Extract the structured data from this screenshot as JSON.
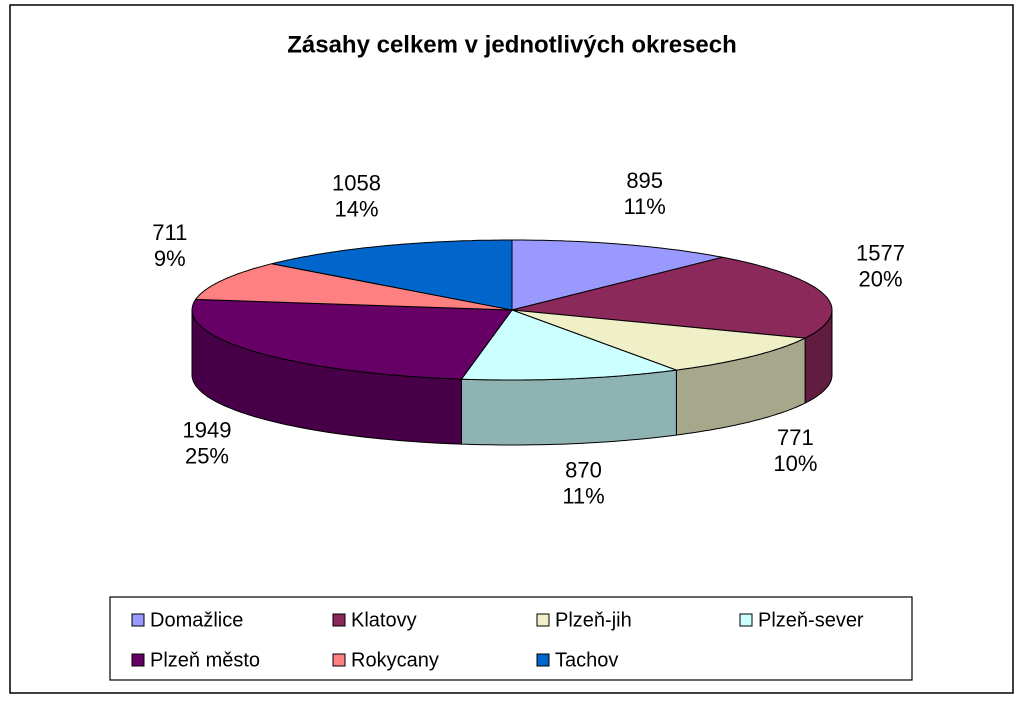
{
  "chart_data": {
    "type": "pie3d",
    "title": "Zásahy celkem v jednotlivých okresech",
    "categories": [
      "Domažlice",
      "Klatovy",
      "Plzeň-jih",
      "Plzeň-sever",
      "Plzeň město",
      "Rokycany",
      "Tachov"
    ],
    "values": [
      895,
      1577,
      771,
      870,
      1949,
      711,
      1058
    ],
    "percent_labels": [
      "11%",
      "20%",
      "10%",
      "11%",
      "25%",
      "9%",
      "14%"
    ],
    "colors": [
      "#9999ff",
      "#8b2a5a",
      "#efefc8",
      "#ccffff",
      "#660066",
      "#ff8080",
      "#0066cc"
    ],
    "legend": "bottom"
  }
}
